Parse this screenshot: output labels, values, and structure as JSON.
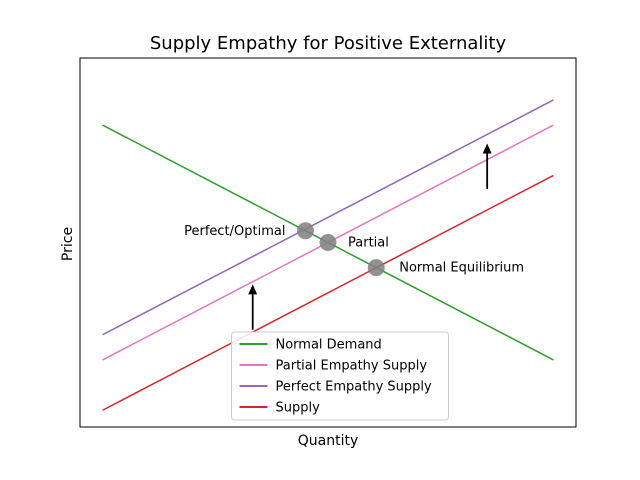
{
  "chart_data": {
    "type": "line",
    "title": "Supply Empathy for Positive Externality",
    "xlabel": "Quantity",
    "ylabel": "Price",
    "xlim": [
      -0.5,
      10.5
    ],
    "ylim": [
      -0.5,
      10.5
    ],
    "grid": false,
    "ticks_visible": false,
    "legend_location": "lower center",
    "series": [
      {
        "name": "Normal Demand",
        "color": "#2ca02c",
        "x": [
          0,
          10
        ],
        "y": [
          8.5,
          1.5
        ]
      },
      {
        "name": "Partial Empathy Supply",
        "color": "#e377c2",
        "x": [
          0,
          10
        ],
        "y": [
          1.5,
          8.5
        ]
      },
      {
        "name": "Perfect Empathy Supply",
        "color": "#9467bd",
        "x": [
          0,
          10
        ],
        "y": [
          2.25,
          9.25
        ]
      },
      {
        "name": "Supply",
        "color": "#d62728",
        "x": [
          0,
          10
        ],
        "y": [
          0.0,
          7.0
        ]
      }
    ],
    "points": [
      {
        "label": "Perfect/Optimal",
        "x": 4.5,
        "y": 5.35,
        "color": "#7f7f7f"
      },
      {
        "label": "Partial",
        "x": 5.0,
        "y": 5.0,
        "color": "#7f7f7f"
      },
      {
        "label": "Normal Equilibrium",
        "x": 6.07,
        "y": 4.25,
        "color": "#7f7f7f"
      }
    ],
    "arrows": [
      {
        "x": 3.33,
        "y_from": 2.4,
        "y_to": 3.75
      },
      {
        "x": 8.53,
        "y_from": 6.6,
        "y_to": 7.95
      }
    ]
  }
}
